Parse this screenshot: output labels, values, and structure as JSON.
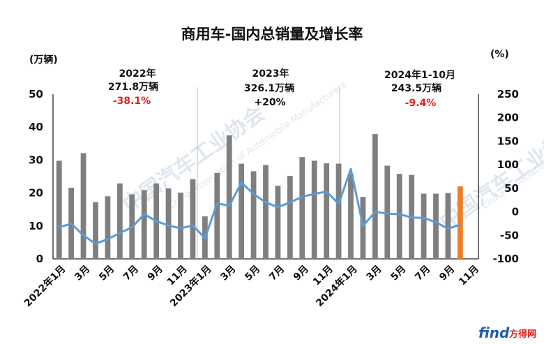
{
  "chart_data": {
    "type": "bar+line",
    "title": "商用车-国内总销量及增长率",
    "left_unit": "(万辆)",
    "right_unit": "(%)",
    "left_ylim": [
      0,
      50
    ],
    "left_ticks": [
      0,
      10,
      20,
      30,
      40,
      50
    ],
    "right_ylim": [
      -100,
      250
    ],
    "right_ticks": [
      -100,
      -50,
      0,
      50,
      100,
      150,
      200,
      250
    ],
    "x_labels": [
      "2022年1月",
      "3月",
      "5月",
      "7月",
      "9月",
      "11月",
      "2023年1月",
      "3月",
      "5月",
      "7月",
      "9月",
      "11月",
      "2024年1月",
      "3月",
      "5月",
      "7月",
      "9月",
      "11月"
    ],
    "months": 35,
    "sales": [
      29.8,
      21.6,
      32.1,
      17.2,
      19.0,
      22.9,
      19.6,
      20.9,
      22.9,
      21.4,
      20.1,
      24.2,
      12.9,
      26.1,
      37.5,
      28.9,
      26.6,
      28.5,
      22.2,
      25.2,
      30.9,
      29.8,
      29.0,
      28.9,
      25.8,
      18.8,
      37.9,
      28.3,
      25.8,
      25.5,
      19.8,
      19.8,
      20.0,
      22.0
    ],
    "growth": [
      -33,
      -25,
      -50,
      -68,
      -58,
      -45,
      -33,
      -5,
      -20,
      -29,
      -35,
      -29,
      -56,
      18,
      13,
      62,
      38,
      20,
      10,
      20,
      32,
      38,
      43,
      17,
      91,
      -30,
      0,
      -4,
      -5,
      -12,
      -13,
      -22,
      -36,
      -27
    ],
    "highlight_color": "#ee7d2b",
    "bar_color": "#7f7f7f",
    "line_color": "#5b9bd5",
    "annotations": [
      {
        "year": "2022年",
        "total": "271.8万辆",
        "growth": "-38.1%"
      },
      {
        "year": "2023年",
        "total": "326.1万辆",
        "growth": "+20%"
      },
      {
        "year": "2024年1-10月",
        "total": "243.5万辆",
        "growth": "-9.4%"
      }
    ],
    "watermark": {
      "cn": "中国汽车工业协会",
      "en": "China Association of Automobile Manufacturers"
    },
    "logo": {
      "brand": "find",
      "cn": "方得网"
    }
  }
}
